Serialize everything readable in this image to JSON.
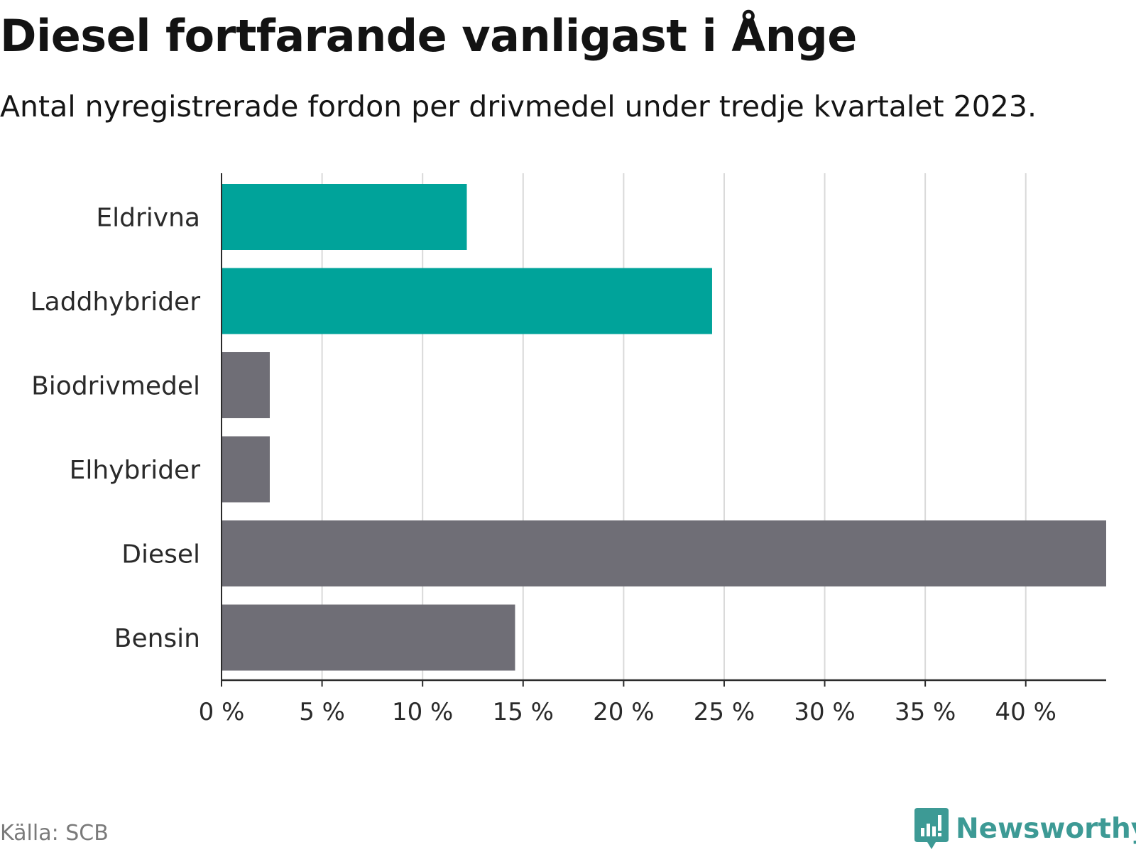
{
  "title": "Diesel fortfarande vanligast i Ånge",
  "subtitle": "Antal nyregistrerade fordon per drivmedel under tredje kvartalet 2023.",
  "source": "Källa: SCB",
  "brand": "Newsworthy",
  "colors": {
    "highlight": "#00a39a",
    "default": "#6f6e76",
    "grid": "#d9d9d9",
    "axis": "#2b2b2b",
    "brand": "#3d9a95"
  },
  "chart_data": {
    "type": "bar",
    "orientation": "horizontal",
    "categories": [
      "Eldrivna",
      "Laddhybrider",
      "Biodrivmedel",
      "Elhybrider",
      "Diesel",
      "Bensin"
    ],
    "values": [
      12.2,
      24.4,
      2.4,
      2.4,
      44,
      14.6
    ],
    "highlighted": [
      "Eldrivna",
      "Laddhybrider"
    ],
    "unit": "%",
    "xlim": [
      0,
      44
    ],
    "ticks": [
      0,
      5,
      10,
      15,
      20,
      25,
      30,
      35,
      40
    ],
    "tick_labels": [
      "0 %",
      "5 %",
      "10 %",
      "15 %",
      "20 %",
      "25 %",
      "30 %",
      "35 %",
      "40 %"
    ],
    "grid": true,
    "xlabel": "",
    "ylabel": ""
  }
}
